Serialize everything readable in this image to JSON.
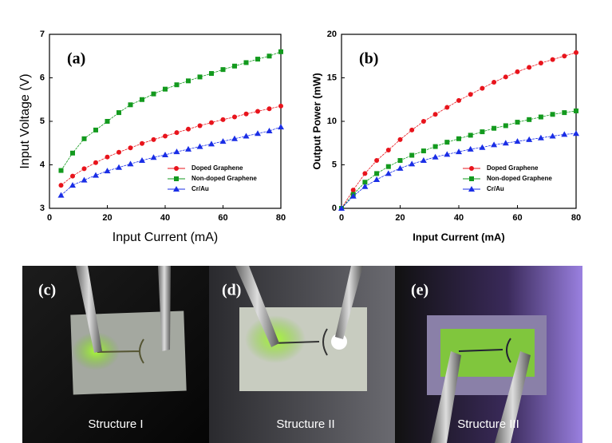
{
  "chart_data": [
    {
      "type": "line",
      "panel_label": "(a)",
      "xlabel": "Input Current (mA)",
      "ylabel": "Input Voltage (V)",
      "x": [
        4,
        8,
        12,
        16,
        20,
        24,
        28,
        32,
        36,
        40,
        44,
        48,
        52,
        56,
        60,
        64,
        68,
        72,
        76,
        80
      ],
      "xlim": [
        0,
        80
      ],
      "xticks": [
        0,
        20,
        40,
        60,
        80
      ],
      "ylim": [
        3,
        7
      ],
      "yticks": [
        3,
        4,
        5,
        6,
        7
      ],
      "legend": "lower right",
      "series": [
        {
          "name": "Doped Graphene",
          "color": "#e8141c",
          "marker": "circle",
          "values": [
            3.53,
            3.74,
            3.91,
            4.05,
            4.18,
            4.29,
            4.39,
            4.49,
            4.58,
            4.66,
            4.74,
            4.82,
            4.9,
            4.97,
            5.04,
            5.1,
            5.17,
            5.23,
            5.29,
            5.35
          ]
        },
        {
          "name": "Non-doped Graphene",
          "color": "#139a1e",
          "marker": "square",
          "values": [
            3.87,
            4.27,
            4.6,
            4.8,
            5.0,
            5.2,
            5.38,
            5.5,
            5.63,
            5.74,
            5.84,
            5.93,
            6.02,
            6.1,
            6.19,
            6.27,
            6.35,
            6.43,
            6.5,
            6.6
          ]
        },
        {
          "name": "Cr/Au",
          "color": "#1a2ee6",
          "marker": "triangle",
          "values": [
            3.3,
            3.53,
            3.65,
            3.76,
            3.86,
            3.94,
            4.02,
            4.1,
            4.17,
            4.23,
            4.3,
            4.36,
            4.42,
            4.48,
            4.54,
            4.6,
            4.66,
            4.72,
            4.78,
            4.87
          ]
        }
      ]
    },
    {
      "type": "line",
      "panel_label": "(b)",
      "xlabel": "Input Current (mA)",
      "ylabel": "Output Power (mW)",
      "x": [
        0,
        4,
        8,
        12,
        16,
        20,
        24,
        28,
        32,
        36,
        40,
        44,
        48,
        52,
        56,
        60,
        64,
        68,
        72,
        76,
        80
      ],
      "xlim": [
        0,
        80
      ],
      "xticks": [
        0,
        20,
        40,
        60,
        80
      ],
      "ylim": [
        0,
        20
      ],
      "yticks": [
        0,
        5,
        10,
        15,
        20
      ],
      "legend": "lower right",
      "series": [
        {
          "name": "Doped Graphene",
          "color": "#e8141c",
          "marker": "circle",
          "values": [
            0,
            2.1,
            4.0,
            5.5,
            6.7,
            7.9,
            9.0,
            10.0,
            10.8,
            11.6,
            12.4,
            13.1,
            13.8,
            14.5,
            15.1,
            15.7,
            16.2,
            16.7,
            17.1,
            17.5,
            17.9
          ]
        },
        {
          "name": "Non-doped Graphene",
          "color": "#139a1e",
          "marker": "square",
          "values": [
            0,
            1.6,
            3.0,
            4.0,
            4.8,
            5.5,
            6.1,
            6.6,
            7.1,
            7.6,
            8.0,
            8.4,
            8.8,
            9.2,
            9.5,
            9.9,
            10.2,
            10.5,
            10.8,
            11.0,
            11.2
          ]
        },
        {
          "name": "Cr/Au",
          "color": "#1a2ee6",
          "marker": "triangle",
          "values": [
            0,
            1.4,
            2.5,
            3.3,
            4.0,
            4.6,
            5.1,
            5.5,
            5.9,
            6.2,
            6.5,
            6.8,
            7.0,
            7.3,
            7.5,
            7.7,
            7.9,
            8.1,
            8.3,
            8.5,
            8.6
          ]
        }
      ]
    }
  ],
  "panels": [
    {
      "label": "(c)",
      "caption": "Structure I"
    },
    {
      "label": "(d)",
      "caption": "Structure II"
    },
    {
      "label": "(e)",
      "caption": "Structure III"
    }
  ]
}
